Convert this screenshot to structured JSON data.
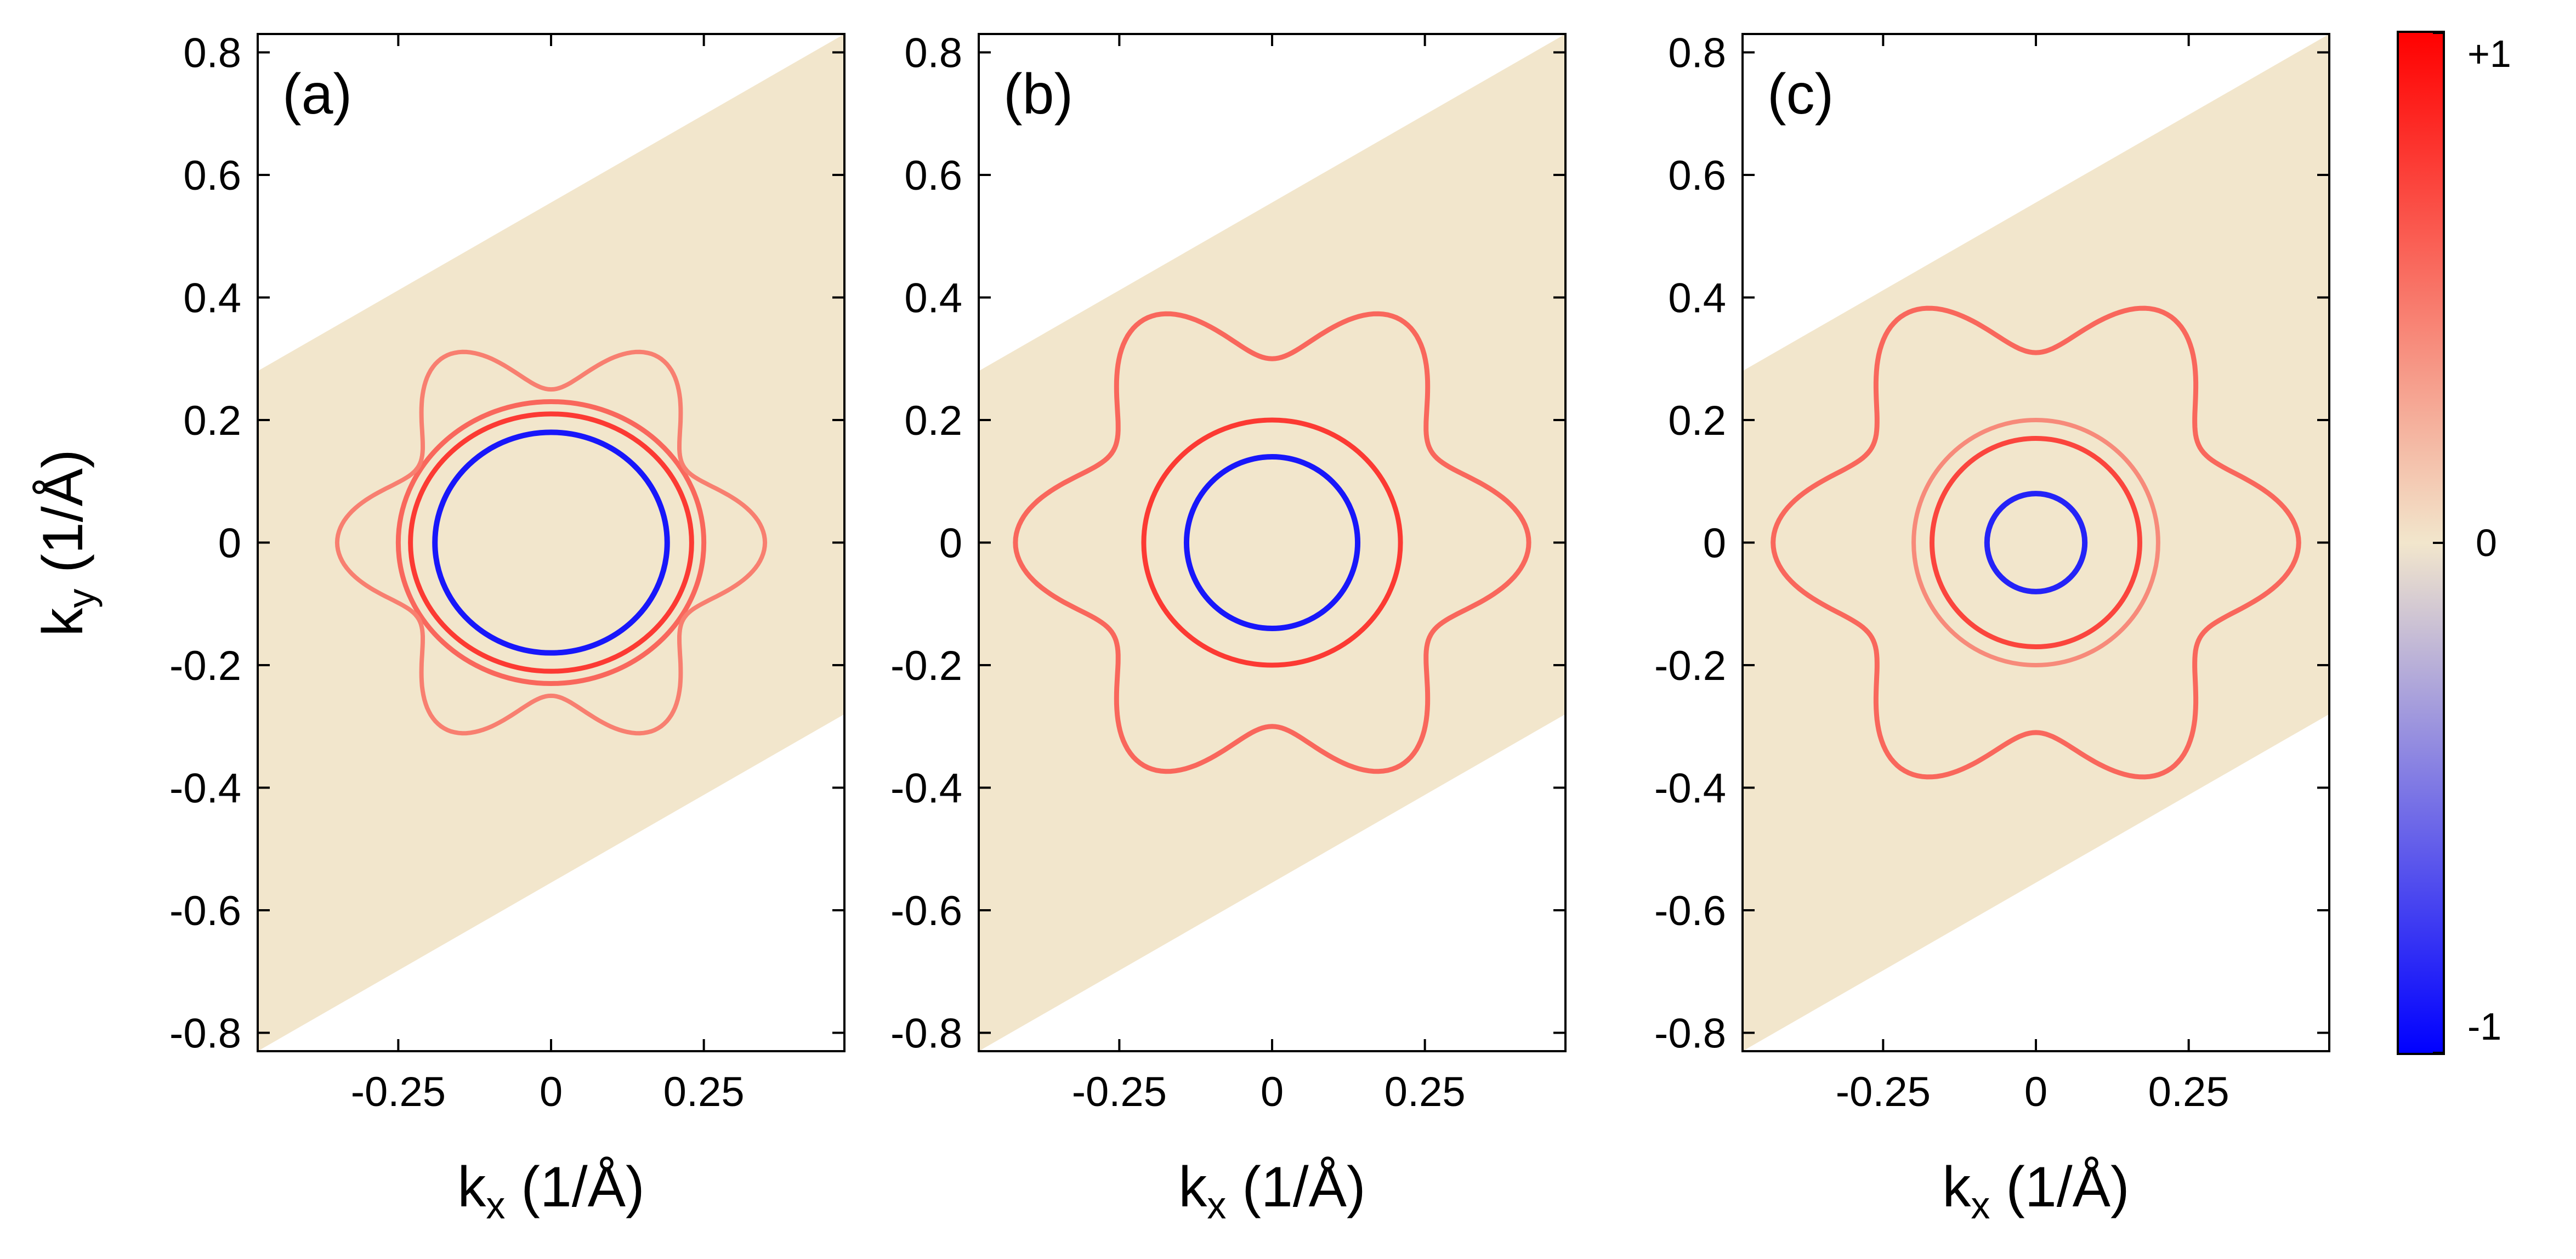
{
  "chart_data": {
    "type": "heatmap",
    "colorbar": {
      "max_label": "+1",
      "mid_label": "0",
      "min_label": "-1",
      "range": [
        -1,
        1
      ],
      "colors": {
        "min": "#0000ff",
        "mid": "#f2e6cc",
        "max": "#ff0000"
      }
    },
    "shared_axes": {
      "xlabel_main": "k",
      "xlabel_sub": "x",
      "xlabel_unit": " (1/Å)",
      "ylabel_main": "k",
      "ylabel_sub": "y",
      "ylabel_unit": " (1/Å)",
      "xlim": [
        -0.48,
        0.48
      ],
      "ylim": [
        -0.83,
        0.83
      ],
      "x_ticks": [
        -0.25,
        0,
        0.25
      ],
      "x_tick_labels": [
        "-0.25",
        "0",
        "0.25"
      ],
      "y_ticks": [
        0.8,
        0.6,
        0.4,
        0.2,
        0,
        -0.2,
        -0.4,
        -0.6,
        -0.8
      ],
      "y_tick_labels": [
        "0.8",
        "0.6",
        "0.4",
        "0.2",
        "0",
        "-0.2",
        "-0.4",
        "-0.6",
        "-0.8"
      ],
      "brillouin_zone": [
        [
          -0.48,
          -0.83
        ],
        [
          0.48,
          -0.28
        ],
        [
          0.48,
          0.83
        ],
        [
          -0.48,
          0.28
        ]
      ]
    },
    "panels": [
      {
        "label": "(a)",
        "features": [
          {
            "shape": "blob",
            "cx": 0,
            "cy": 0,
            "rx": 0.19,
            "ry": 0.18,
            "value": -0.9
          },
          {
            "shape": "blob",
            "cx": 0,
            "cy": 0,
            "rx": 0.23,
            "ry": 0.21,
            "value": 0.75
          },
          {
            "shape": "blob",
            "cx": 0,
            "cy": 0,
            "rx": 0.25,
            "ry": 0.23,
            "value": 0.55
          },
          {
            "shape": "flower",
            "cx": 0,
            "cy": 0,
            "r": 0.3,
            "amp": 0.05,
            "value": 0.45
          }
        ]
      },
      {
        "label": "(b)",
        "features": [
          {
            "shape": "blob",
            "cx": 0,
            "cy": 0,
            "rx": 0.14,
            "ry": 0.14,
            "value": -0.9
          },
          {
            "shape": "blob",
            "cx": 0,
            "cy": 0,
            "rx": 0.21,
            "ry": 0.2,
            "value": 0.75
          },
          {
            "shape": "flower",
            "cx": 0,
            "cy": 0,
            "r": 0.36,
            "amp": 0.06,
            "value": 0.55
          }
        ]
      },
      {
        "label": "(c)",
        "features": [
          {
            "shape": "blob",
            "cx": 0,
            "cy": 0,
            "rx": 0.08,
            "ry": 0.08,
            "value": -0.85
          },
          {
            "shape": "blob",
            "cx": 0,
            "cy": 0,
            "rx": 0.17,
            "ry": 0.17,
            "value": 0.7
          },
          {
            "shape": "blob",
            "cx": 0,
            "cy": 0,
            "rx": 0.2,
            "ry": 0.2,
            "value": 0.4
          },
          {
            "shape": "flower",
            "cx": 0,
            "cy": 0,
            "r": 0.37,
            "amp": 0.06,
            "value": 0.55
          }
        ]
      }
    ]
  }
}
